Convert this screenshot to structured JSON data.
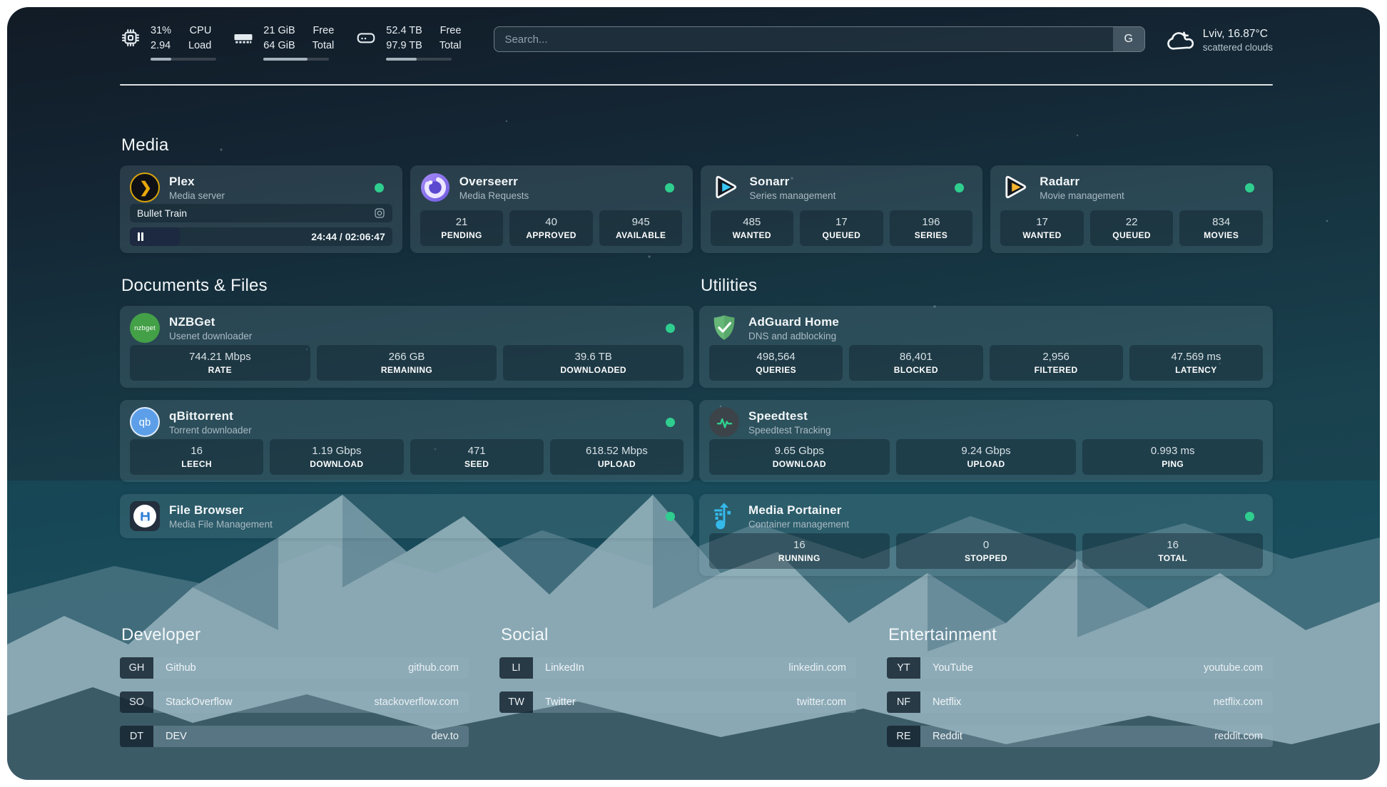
{
  "topbar": {
    "cpu": {
      "icon": "cpu-icon",
      "values": [
        "31%",
        "2.94"
      ],
      "labels": [
        "CPU",
        "Load"
      ],
      "progress": 31
    },
    "memory": {
      "icon": "ram-icon",
      "values": [
        "21 GiB",
        "64 GiB"
      ],
      "labels": [
        "Free",
        "Total"
      ],
      "progress": 67
    },
    "disk": {
      "icon": "disk-icon",
      "values": [
        "52.4 TB",
        "97.9 TB"
      ],
      "labels": [
        "Free",
        "Total"
      ],
      "progress": 46
    },
    "search": {
      "placeholder": "Search...",
      "button_label": "G"
    },
    "weather": {
      "icon": "cloud-icon",
      "line1": "Lviv, 16.87°C",
      "line2": "scattered clouds"
    }
  },
  "sections": {
    "media": {
      "title": "Media",
      "services": [
        {
          "icon": "plex-icon",
          "name": "Plex",
          "desc": "Media server",
          "online": true,
          "stream": {
            "title": "Bullet Train",
            "time": "24:44 / 02:06:47",
            "progress": 19
          }
        },
        {
          "icon": "overseerr-icon",
          "name": "Overseerr",
          "desc": "Media Requests",
          "online": true,
          "stats": [
            {
              "value": "21",
              "label": "PENDING"
            },
            {
              "value": "40",
              "label": "APPROVED"
            },
            {
              "value": "945",
              "label": "AVAILABLE"
            }
          ]
        },
        {
          "icon": "sonarr-icon",
          "name": "Sonarr",
          "desc": "Series management",
          "online": true,
          "stats": [
            {
              "value": "485",
              "label": "WANTED"
            },
            {
              "value": "17",
              "label": "QUEUED"
            },
            {
              "value": "196",
              "label": "SERIES"
            }
          ]
        },
        {
          "icon": "radarr-icon",
          "name": "Radarr",
          "desc": "Movie management",
          "online": true,
          "stats": [
            {
              "value": "17",
              "label": "WANTED"
            },
            {
              "value": "22",
              "label": "QUEUED"
            },
            {
              "value": "834",
              "label": "MOVIES"
            }
          ]
        }
      ]
    },
    "documents": {
      "title": "Documents & Files",
      "services": [
        {
          "icon": "nzbget-icon",
          "name": "NZBGet",
          "desc": "Usenet downloader",
          "online": true,
          "stats": [
            {
              "value": "744.21 Mbps",
              "label": "RATE"
            },
            {
              "value": "266 GB",
              "label": "REMAINING"
            },
            {
              "value": "39.6 TB",
              "label": "DOWNLOADED"
            }
          ]
        },
        {
          "icon": "qbittorrent-icon",
          "name": "qBittorrent",
          "desc": "Torrent downloader",
          "online": true,
          "stats": [
            {
              "value": "16",
              "label": "LEECH"
            },
            {
              "value": "1.19 Gbps",
              "label": "DOWNLOAD"
            },
            {
              "value": "471",
              "label": "SEED"
            },
            {
              "value": "618.52 Mbps",
              "label": "UPLOAD"
            }
          ]
        },
        {
          "icon": "filebrowser-icon",
          "name": "File Browser",
          "desc": "Media File Management",
          "online": true
        }
      ]
    },
    "utilities": {
      "title": "Utilities",
      "services": [
        {
          "icon": "adguard-icon",
          "name": "AdGuard Home",
          "desc": "DNS and adblocking",
          "online": false,
          "stats": [
            {
              "value": "498,564",
              "label": "QUERIES"
            },
            {
              "value": "86,401",
              "label": "BLOCKED"
            },
            {
              "value": "2,956",
              "label": "FILTERED"
            },
            {
              "value": "47.569 ms",
              "label": "LATENCY"
            }
          ]
        },
        {
          "icon": "speedtest-icon",
          "name": "Speedtest",
          "desc": "Speedtest Tracking",
          "online": false,
          "stats": [
            {
              "value": "9.65 Gbps",
              "label": "DOWNLOAD"
            },
            {
              "value": "9.24 Gbps",
              "label": "UPLOAD"
            },
            {
              "value": "0.993 ms",
              "label": "PING"
            }
          ]
        },
        {
          "icon": "portainer-icon",
          "name": "Media Portainer",
          "desc": "Container management",
          "online": true,
          "stats": [
            {
              "value": "16",
              "label": "RUNNING"
            },
            {
              "value": "0",
              "label": "STOPPED"
            },
            {
              "value": "16",
              "label": "TOTAL"
            }
          ]
        }
      ]
    }
  },
  "bookmarks": [
    {
      "title": "Developer",
      "items": [
        {
          "abbr": "GH",
          "name": "Github",
          "domain": "github.com"
        },
        {
          "abbr": "SO",
          "name": "StackOverflow",
          "domain": "stackoverflow.com"
        },
        {
          "abbr": "DT",
          "name": "DEV",
          "domain": "dev.to"
        }
      ]
    },
    {
      "title": "Social",
      "items": [
        {
          "abbr": "LI",
          "name": "LinkedIn",
          "domain": "linkedin.com"
        },
        {
          "abbr": "TW",
          "name": "Twitter",
          "domain": "twitter.com"
        }
      ]
    },
    {
      "title": "Entertainment",
      "items": [
        {
          "abbr": "YT",
          "name": "YouTube",
          "domain": "youtube.com"
        },
        {
          "abbr": "NF",
          "name": "Netflix",
          "domain": "netflix.com"
        },
        {
          "abbr": "RE",
          "name": "Reddit",
          "domain": "reddit.com"
        }
      ]
    }
  ],
  "colors": {
    "status_online": "#2fce8f",
    "plex_gold": "#e8a80c",
    "accent_teal": "#1c4c59"
  }
}
